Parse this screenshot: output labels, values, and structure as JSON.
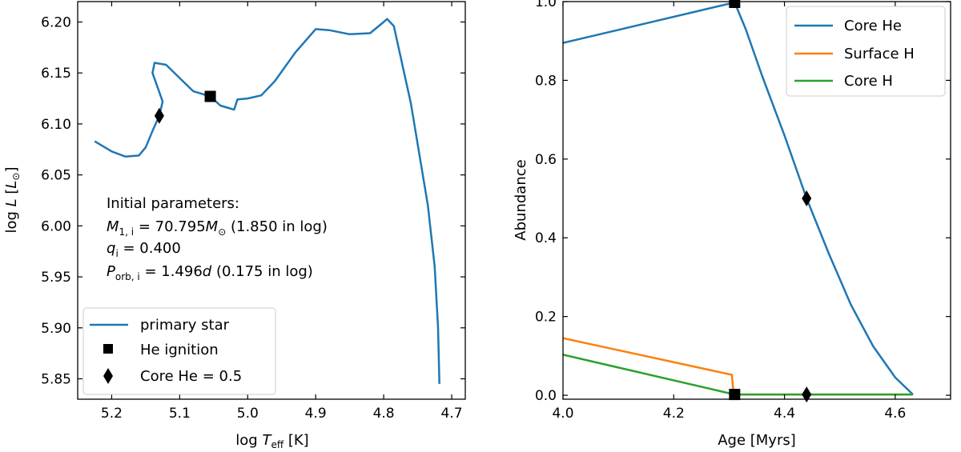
{
  "chart_data": [
    {
      "type": "line",
      "panel": "left",
      "xlabel": "log T_eff [K]",
      "ylabel": "log L [L_⊙]",
      "xlim": [
        5.25,
        4.68
      ],
      "ylim": [
        5.83,
        6.22
      ],
      "xticks": [
        5.2,
        5.1,
        5.0,
        4.9,
        4.8,
        4.7
      ],
      "xtick_labels": [
        "5.2",
        "5.1",
        "5.0",
        "4.9",
        "4.8",
        "4.7"
      ],
      "yticks": [
        5.85,
        5.9,
        5.95,
        6.0,
        6.05,
        6.1,
        6.15,
        6.2
      ],
      "ytick_labels": [
        "5.85",
        "5.90",
        "5.95",
        "6.00",
        "6.05",
        "6.10",
        "6.15",
        "6.20"
      ],
      "series": [
        {
          "name": "primary star",
          "color": "#1f77b4",
          "points": [
            [
              5.225,
              6.083
            ],
            [
              5.2,
              6.073
            ],
            [
              5.18,
              6.068
            ],
            [
              5.16,
              6.069
            ],
            [
              5.15,
              6.077
            ],
            [
              5.14,
              6.093
            ],
            [
              5.13,
              6.108
            ],
            [
              5.125,
              6.122
            ],
            [
              5.14,
              6.15
            ],
            [
              5.137,
              6.16
            ],
            [
              5.12,
              6.158
            ],
            [
              5.1,
              6.145
            ],
            [
              5.08,
              6.132
            ],
            [
              5.055,
              6.127
            ],
            [
              5.04,
              6.118
            ],
            [
              5.03,
              6.116
            ],
            [
              5.02,
              6.114
            ],
            [
              5.015,
              6.124
            ],
            [
              5.0,
              6.125
            ],
            [
              4.98,
              6.128
            ],
            [
              4.96,
              6.142
            ],
            [
              4.93,
              6.17
            ],
            [
              4.9,
              6.193
            ],
            [
              4.88,
              6.192
            ],
            [
              4.85,
              6.188
            ],
            [
              4.82,
              6.189
            ],
            [
              4.8,
              6.2
            ],
            [
              4.795,
              6.203
            ],
            [
              4.785,
              6.196
            ],
            [
              4.76,
              6.12
            ],
            [
              4.735,
              6.02
            ],
            [
              4.725,
              5.96
            ],
            [
              4.72,
              5.9
            ],
            [
              4.718,
              5.845
            ]
          ]
        }
      ],
      "markers": [
        {
          "name": "He ignition",
          "shape": "square",
          "x": 5.055,
          "y": 6.127
        },
        {
          "name": "Core He = 0.5",
          "shape": "diamond",
          "x": 5.13,
          "y": 6.108
        }
      ],
      "annotation": {
        "title": "Initial parameters:",
        "mass_line": "M_1,i = 70.795 M_⊙  (1.850 in log)",
        "q_line": "q_i = 0.400",
        "p_line": "P_orb,i = 1.496 d (0.175 in log)"
      },
      "legend": {
        "placement": "lower-left",
        "entries": [
          "primary star",
          "He ignition",
          "Core He = 0.5"
        ]
      }
    },
    {
      "type": "line",
      "panel": "right",
      "xlabel": "Age [Myrs]",
      "ylabel": "Abundance",
      "xlim": [
        4.0,
        4.7
      ],
      "ylim": [
        -0.01,
        1.0
      ],
      "xticks": [
        4.0,
        4.2,
        4.4,
        4.6
      ],
      "xtick_labels": [
        "4.0",
        "4.2",
        "4.4",
        "4.6"
      ],
      "yticks": [
        0.0,
        0.2,
        0.4,
        0.6,
        0.8,
        1.0
      ],
      "ytick_labels": [
        "0.0",
        "0.2",
        "0.4",
        "0.6",
        "0.8",
        "1.0"
      ],
      "series": [
        {
          "name": "Core He",
          "color": "#1f77b4",
          "points": [
            [
              4.0,
              0.895
            ],
            [
              4.31,
              0.998
            ],
            [
              4.33,
              0.93
            ],
            [
              4.36,
              0.81
            ],
            [
              4.4,
              0.66
            ],
            [
              4.44,
              0.5
            ],
            [
              4.48,
              0.36
            ],
            [
              4.52,
              0.23
            ],
            [
              4.56,
              0.125
            ],
            [
              4.6,
              0.045
            ],
            [
              4.632,
              0.002
            ]
          ]
        },
        {
          "name": "Surface H",
          "color": "#ff7f0e",
          "points": [
            [
              4.0,
              0.145
            ],
            [
              4.305,
              0.052
            ],
            [
              4.308,
              0.002
            ],
            [
              4.632,
              0.002
            ]
          ]
        },
        {
          "name": "Core H",
          "color": "#2ca02c",
          "points": [
            [
              4.0,
              0.103
            ],
            [
              4.31,
              0.002
            ],
            [
              4.632,
              0.002
            ]
          ]
        }
      ],
      "markers": [
        {
          "name": "He ignition top",
          "shape": "square",
          "x": 4.31,
          "y": 0.998
        },
        {
          "name": "He ignition bottom",
          "shape": "square",
          "x": 4.31,
          "y": 0.002
        },
        {
          "name": "Core He = 0.5",
          "shape": "diamond",
          "x": 4.44,
          "y": 0.5
        },
        {
          "name": "Core He = 0.5 bottom",
          "shape": "diamond",
          "x": 4.44,
          "y": 0.002
        }
      ],
      "legend": {
        "placement": "top-right",
        "entries": [
          "Core He",
          "Surface H",
          "Core H"
        ]
      }
    }
  ]
}
